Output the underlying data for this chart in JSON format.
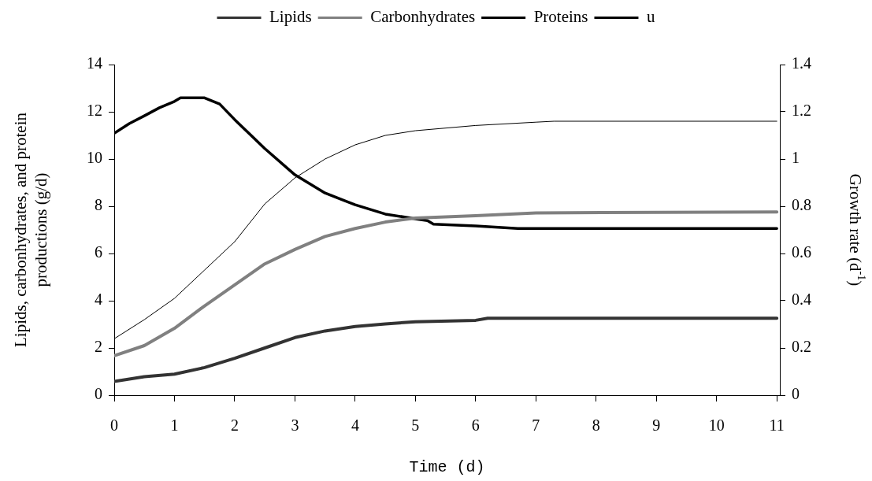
{
  "chart_data": {
    "type": "line",
    "xlabel": "Time (d)",
    "ylabel": "Lipids, carbonhydrates, and protein productions (g/d)",
    "y2label": "Growth rate (d$^{-1}$)",
    "legend": "top",
    "marker": "none",
    "line_style": "solid",
    "xlim": [
      0,
      11.05
    ],
    "xticks": [
      0,
      1,
      2,
      3,
      4,
      5,
      6,
      7,
      8,
      9,
      10,
      11
    ],
    "ylim": [
      0,
      14
    ],
    "yticks": [
      0,
      2,
      4,
      6,
      8,
      10,
      12,
      14
    ],
    "y2lim": [
      0,
      1.4
    ],
    "y2ticks": [
      0,
      0.2,
      0.4,
      0.6,
      0.8,
      1,
      1.2,
      1.4
    ],
    "series": [
      {
        "name": "Lipids",
        "color": "#333333",
        "x": [
          0,
          0.5,
          1,
          1.5,
          2,
          2.5,
          3,
          3.5,
          4,
          4.5,
          5,
          6,
          6.2,
          11
        ],
        "values": [
          0.58,
          0.78,
          0.89,
          1.17,
          1.56,
          2.0,
          2.44,
          2.72,
          2.91,
          3.02,
          3.11,
          3.17,
          3.26,
          3.26
        ]
      },
      {
        "name": "Carbonhydrates",
        "color": "#808080",
        "x": [
          0,
          0.5,
          1,
          1.5,
          2,
          2.5,
          3,
          3.5,
          4,
          4.5,
          5,
          6,
          7,
          11
        ],
        "values": [
          1.67,
          2.1,
          2.83,
          3.78,
          4.67,
          5.56,
          6.17,
          6.72,
          7.06,
          7.33,
          7.5,
          7.6,
          7.72,
          7.76
        ]
      },
      {
        "name": "Proteins",
        "color": "#000000",
        "x": [
          0,
          0.5,
          1,
          1.5,
          2,
          2.5,
          3,
          3.5,
          4,
          4.5,
          5,
          6,
          7,
          7.3,
          11
        ],
        "values": [
          2.39,
          3.2,
          4.1,
          5.3,
          6.5,
          8.1,
          9.2,
          10.0,
          10.6,
          11.0,
          11.2,
          11.42,
          11.56,
          11.6,
          11.6
        ]
      },
      {
        "name": "u",
        "color": "#000000",
        "axis": "y2",
        "x": [
          0,
          0.25,
          0.5,
          0.75,
          1,
          1.1,
          1.5,
          1.75,
          2,
          2.5,
          3,
          3.5,
          4,
          4.5,
          5,
          5.2,
          5.3,
          6,
          6.7,
          11
        ],
        "values": [
          1.109,
          1.15,
          1.183,
          1.217,
          1.244,
          1.259,
          1.259,
          1.233,
          1.167,
          1.044,
          0.933,
          0.856,
          0.806,
          0.767,
          0.747,
          0.739,
          0.724,
          0.717,
          0.706,
          0.706
        ]
      }
    ]
  }
}
